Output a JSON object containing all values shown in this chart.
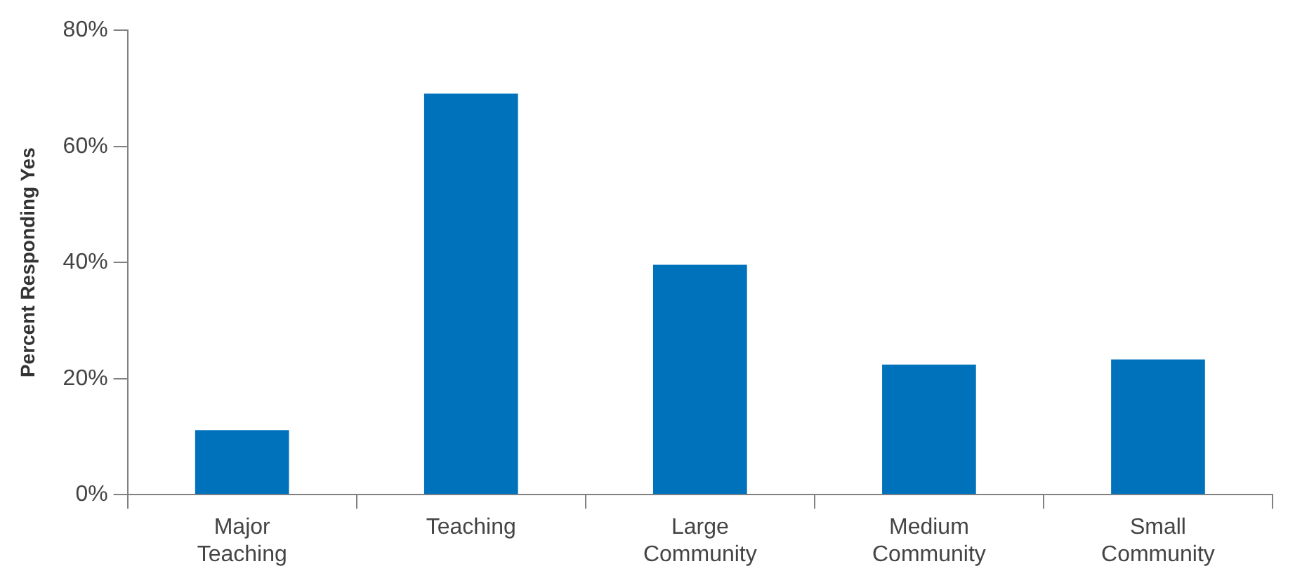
{
  "chart_data": {
    "type": "bar",
    "ylabel": "Percent Responding Yes",
    "categories": [
      "Major Teaching",
      "Teaching",
      "Large Community",
      "Medium Community",
      "Small Community"
    ],
    "values": [
      11.1,
      69.1,
      39.6,
      22.4,
      23.3
    ],
    "color": "#0072bc",
    "ylim": [
      0,
      80
    ],
    "yticks": [
      {
        "value": 0,
        "label": "0%"
      },
      {
        "value": 20,
        "label": "20%"
      },
      {
        "value": 40,
        "label": "40%"
      },
      {
        "value": 60,
        "label": "60%"
      },
      {
        "value": 80,
        "label": "80%"
      }
    ]
  }
}
